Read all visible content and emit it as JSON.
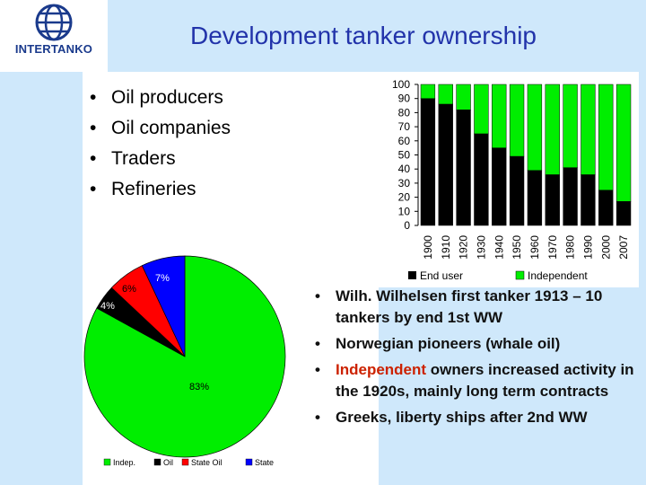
{
  "title": "Development tanker ownership",
  "logo": {
    "text": "INTERTANKO"
  },
  "top_bullets": [
    "Oil producers",
    "Oil companies",
    "Traders",
    "Refineries"
  ],
  "bottom_bullets": [
    {
      "pre": "Wilh. Wilhelsen first tanker 1913 – 10 tankers by end 1st WW",
      "hl": "",
      "post": ""
    },
    {
      "pre": "Norwegian pioneers (whale oil)",
      "hl": "",
      "post": ""
    },
    {
      "pre": "",
      "hl": "Independent",
      "post": " owners increased activity in the 1920s, mainly long term contracts"
    },
    {
      "pre": "Greeks, liberty ships after 2nd WW",
      "hl": "",
      "post": ""
    }
  ],
  "colors": {
    "title": "#2233aa",
    "end_user": "#000000",
    "independent": "#00ee00",
    "oil": "#000000",
    "state_oil": "#ff0000",
    "state": "#0000ff",
    "highlight": "#cc2200"
  },
  "chart_data": [
    {
      "type": "bar",
      "stacked": true,
      "categories": [
        "1900",
        "1910",
        "1920",
        "1930",
        "1940",
        "1950",
        "1960",
        "1970",
        "1980",
        "1990",
        "2000",
        "2007"
      ],
      "series": [
        {
          "name": "End user",
          "values": [
            90,
            86,
            82,
            65,
            55,
            49,
            39,
            36,
            41,
            36,
            25,
            17
          ]
        },
        {
          "name": "Independent",
          "values": [
            10,
            14,
            18,
            35,
            45,
            51,
            61,
            64,
            59,
            64,
            75,
            83
          ]
        }
      ],
      "ylim": [
        0,
        100
      ],
      "yticks": [
        "100",
        "90",
        "80",
        "70",
        "60",
        "50",
        "40",
        "30",
        "20",
        "10",
        "0"
      ],
      "legend": "bottom"
    },
    {
      "type": "pie",
      "slices": [
        {
          "name": "Indep.",
          "value": 83,
          "label": "83%"
        },
        {
          "name": "Oil",
          "value": 4,
          "label": "4%"
        },
        {
          "name": "State Oil",
          "value": 6,
          "label": "6%"
        },
        {
          "name": "State",
          "value": 7,
          "label": "7%"
        }
      ],
      "legend": "bottom"
    }
  ]
}
